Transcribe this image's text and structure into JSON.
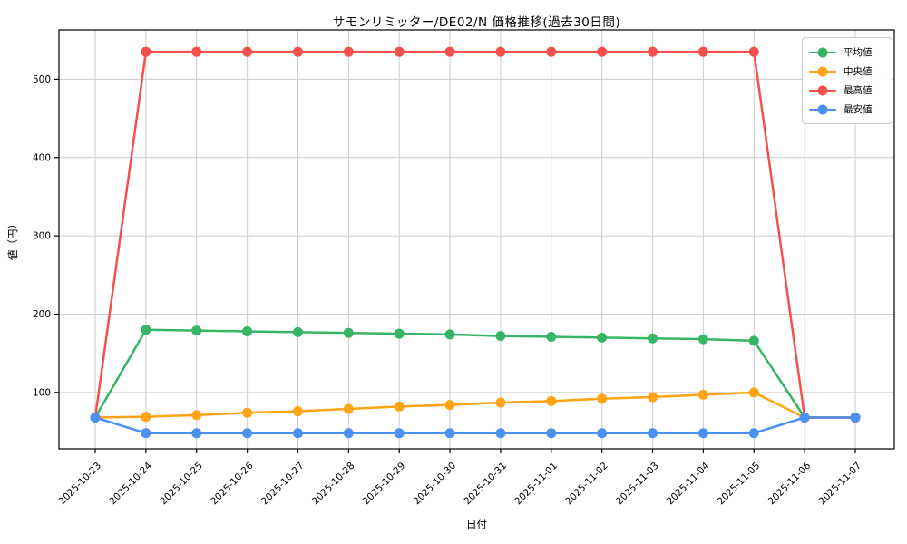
{
  "chart_data": {
    "type": "line",
    "title": "サモンリミッター/DE02/N 価格推移(過去30日間)",
    "xlabel": "日付",
    "ylabel": "値（円）",
    "x": [
      "2025-10-23",
      "2025-10-24",
      "2025-10-25",
      "2025-10-26",
      "2025-10-27",
      "2025-10-28",
      "2025-10-29",
      "2025-10-30",
      "2025-10-31",
      "2025-11-01",
      "2025-11-02",
      "2025-11-03",
      "2025-11-04",
      "2025-11-05",
      "2025-11-06",
      "2025-11-07"
    ],
    "series": [
      {
        "name": "平均値",
        "semantic": "average",
        "color": "#36b566",
        "values": [
          68,
          180,
          179,
          178,
          177,
          176,
          175,
          174,
          172,
          171,
          170,
          169,
          168,
          166,
          68,
          68
        ]
      },
      {
        "name": "中央値",
        "semantic": "median",
        "color": "#ffa415",
        "values": [
          68,
          69,
          71,
          74,
          76,
          79,
          82,
          84,
          87,
          89,
          92,
          94,
          97,
          100,
          68,
          68
        ]
      },
      {
        "name": "最高値",
        "semantic": "max",
        "color": "#f4504c",
        "values": [
          68,
          535,
          535,
          535,
          535,
          535,
          535,
          535,
          535,
          535,
          535,
          535,
          535,
          535,
          68,
          68
        ]
      },
      {
        "name": "最安値",
        "semantic": "min",
        "color": "#4b91f2",
        "values": [
          68,
          48,
          48,
          48,
          48,
          48,
          48,
          48,
          48,
          48,
          48,
          48,
          48,
          48,
          68,
          68
        ]
      }
    ],
    "ylim": [
      28,
      563
    ],
    "yticks": [
      100,
      200,
      300,
      400,
      500
    ],
    "grid": true,
    "legend_position": "upper right",
    "style": {
      "grid_color": "#cccccc",
      "spine_color": "#000000",
      "tick_label_color": "#000000",
      "background": "#ffffff",
      "x_tick_rotation_deg": 45
    }
  }
}
